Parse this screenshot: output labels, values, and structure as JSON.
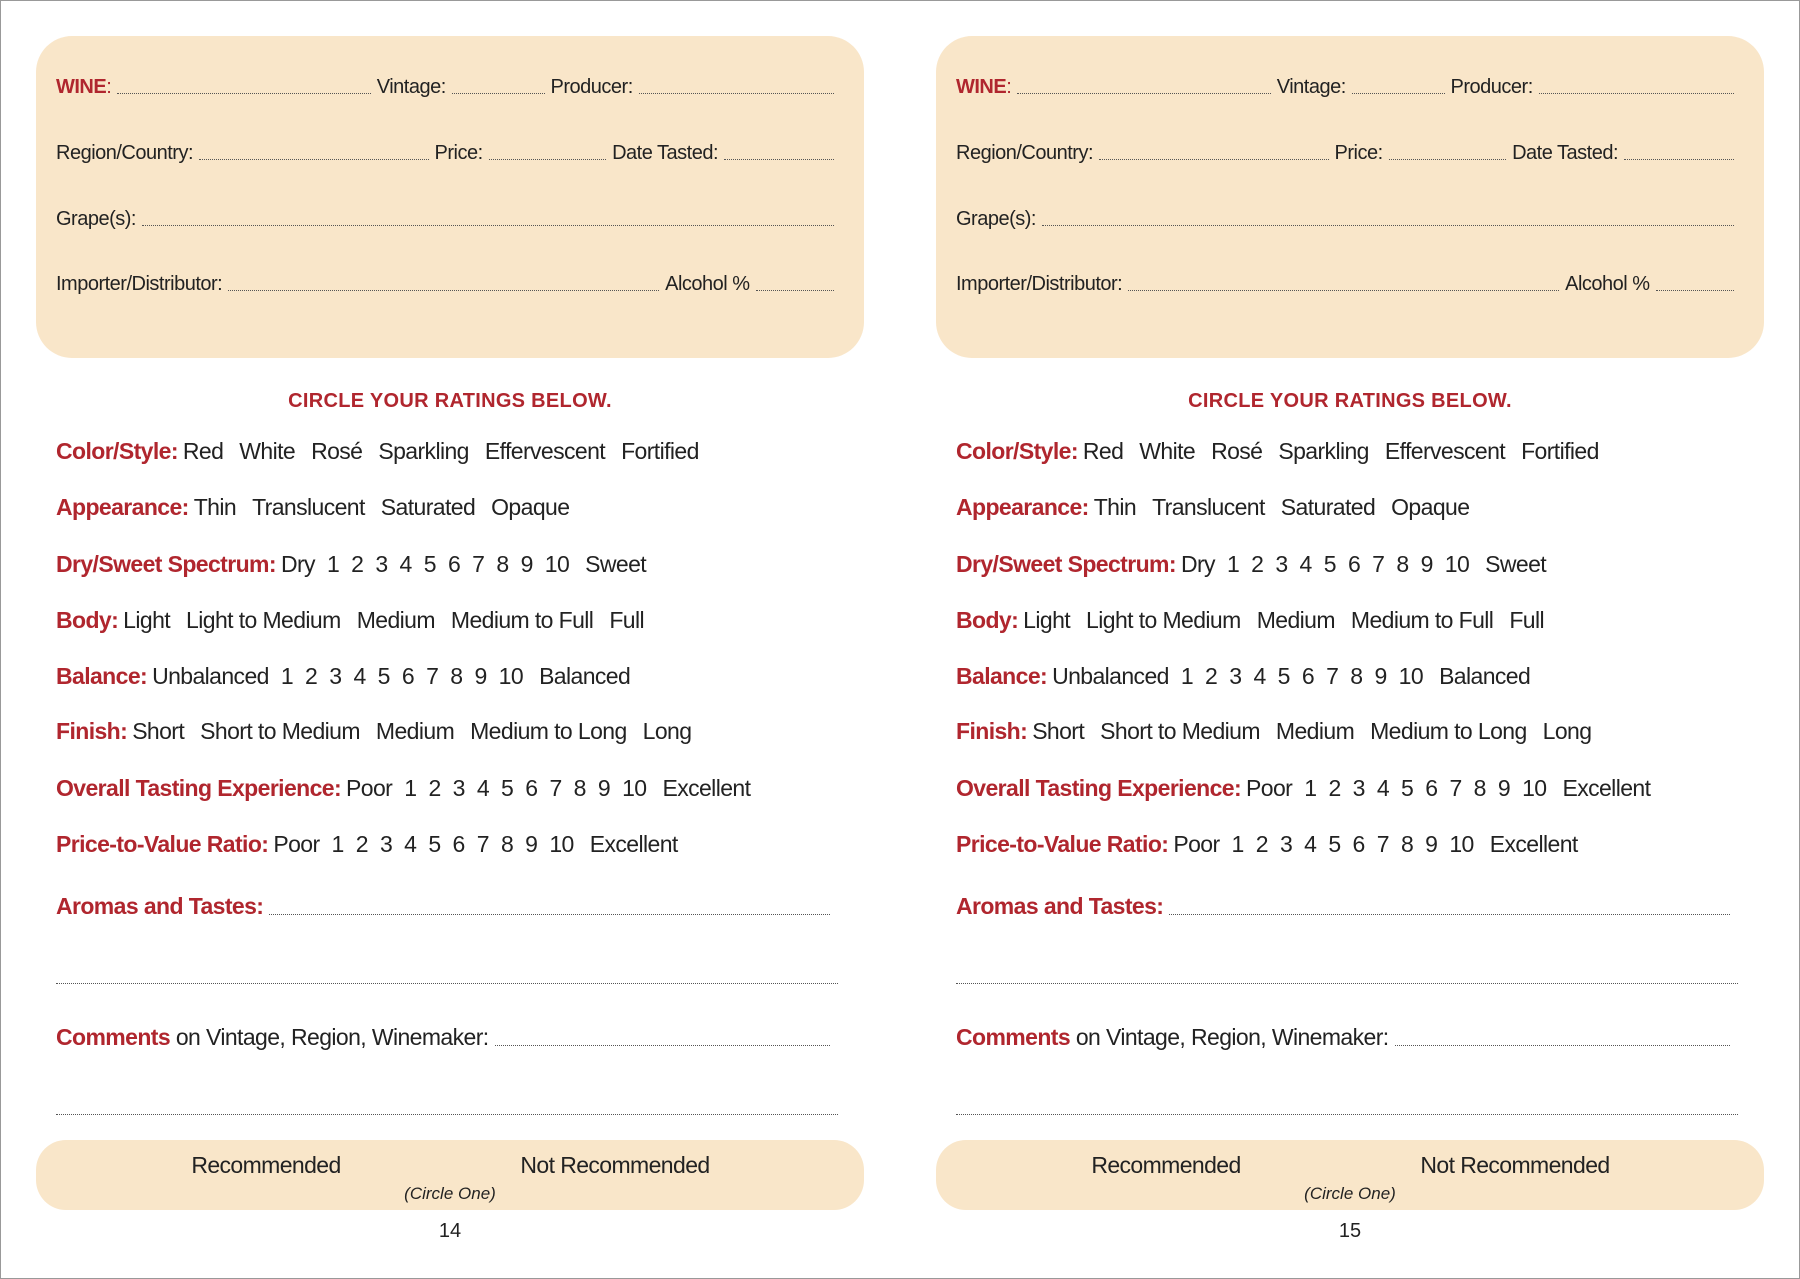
{
  "colors": {
    "accent": "#b0262e",
    "panel": "#f9e6c9"
  },
  "form": {
    "header": {
      "wine": "WINE",
      "wine_colon": ":",
      "vintage": "Vintage:",
      "producer": "Producer:",
      "region": "Region/Country:",
      "price": "Price:",
      "date": "Date Tasted:",
      "grapes": "Grape(s):",
      "importer": "Importer/Distributor:",
      "alcohol": "Alcohol %"
    },
    "instruction": "CIRCLE YOUR RATINGS BELOW.",
    "ratings": [
      {
        "label": "Color/Style:",
        "options": [
          "Red",
          "White",
          "Rosé",
          "Sparkling",
          "Effervescent",
          "Fortified"
        ]
      },
      {
        "label": "Appearance:",
        "options": [
          "Thin",
          "Translucent",
          "Saturated",
          "Opaque"
        ]
      },
      {
        "label": "Dry/Sweet Spectrum:",
        "options": [
          "Dry",
          "1",
          "2",
          "3",
          "4",
          "5",
          "6",
          "7",
          "8",
          "9",
          "10",
          "Sweet"
        ]
      },
      {
        "label": "Body:",
        "options": [
          "Light",
          "Light to Medium",
          "Medium",
          "Medium to Full",
          "Full"
        ]
      },
      {
        "label": "Balance:",
        "options": [
          "Unbalanced",
          "1",
          "2",
          "3",
          "4",
          "5",
          "6",
          "7",
          "8",
          "9",
          "10",
          "Balanced"
        ]
      },
      {
        "label": "Finish:",
        "options": [
          "Short",
          "Short to Medium",
          "Medium",
          "Medium to Long",
          "Long"
        ]
      },
      {
        "label": "Overall Tasting Experience:",
        "options": [
          "Poor",
          "1",
          "2",
          "3",
          "4",
          "5",
          "6",
          "7",
          "8",
          "9",
          "10",
          "Excellent"
        ]
      },
      {
        "label": "Price-to-Value Ratio:",
        "options": [
          "Poor",
          "1",
          "2",
          "3",
          "4",
          "5",
          "6",
          "7",
          "8",
          "9",
          "10",
          "Excellent"
        ]
      }
    ],
    "aromas": "Aromas and Tastes:",
    "comments_bold": "Comments",
    "comments_rest": " on Vintage, Region, Winemaker:",
    "recommended": "Recommended",
    "not_recommended": "Not Recommended",
    "circle_one": "Circle One"
  },
  "pages": [
    {
      "page_number": "14"
    },
    {
      "page_number": "15"
    }
  ]
}
